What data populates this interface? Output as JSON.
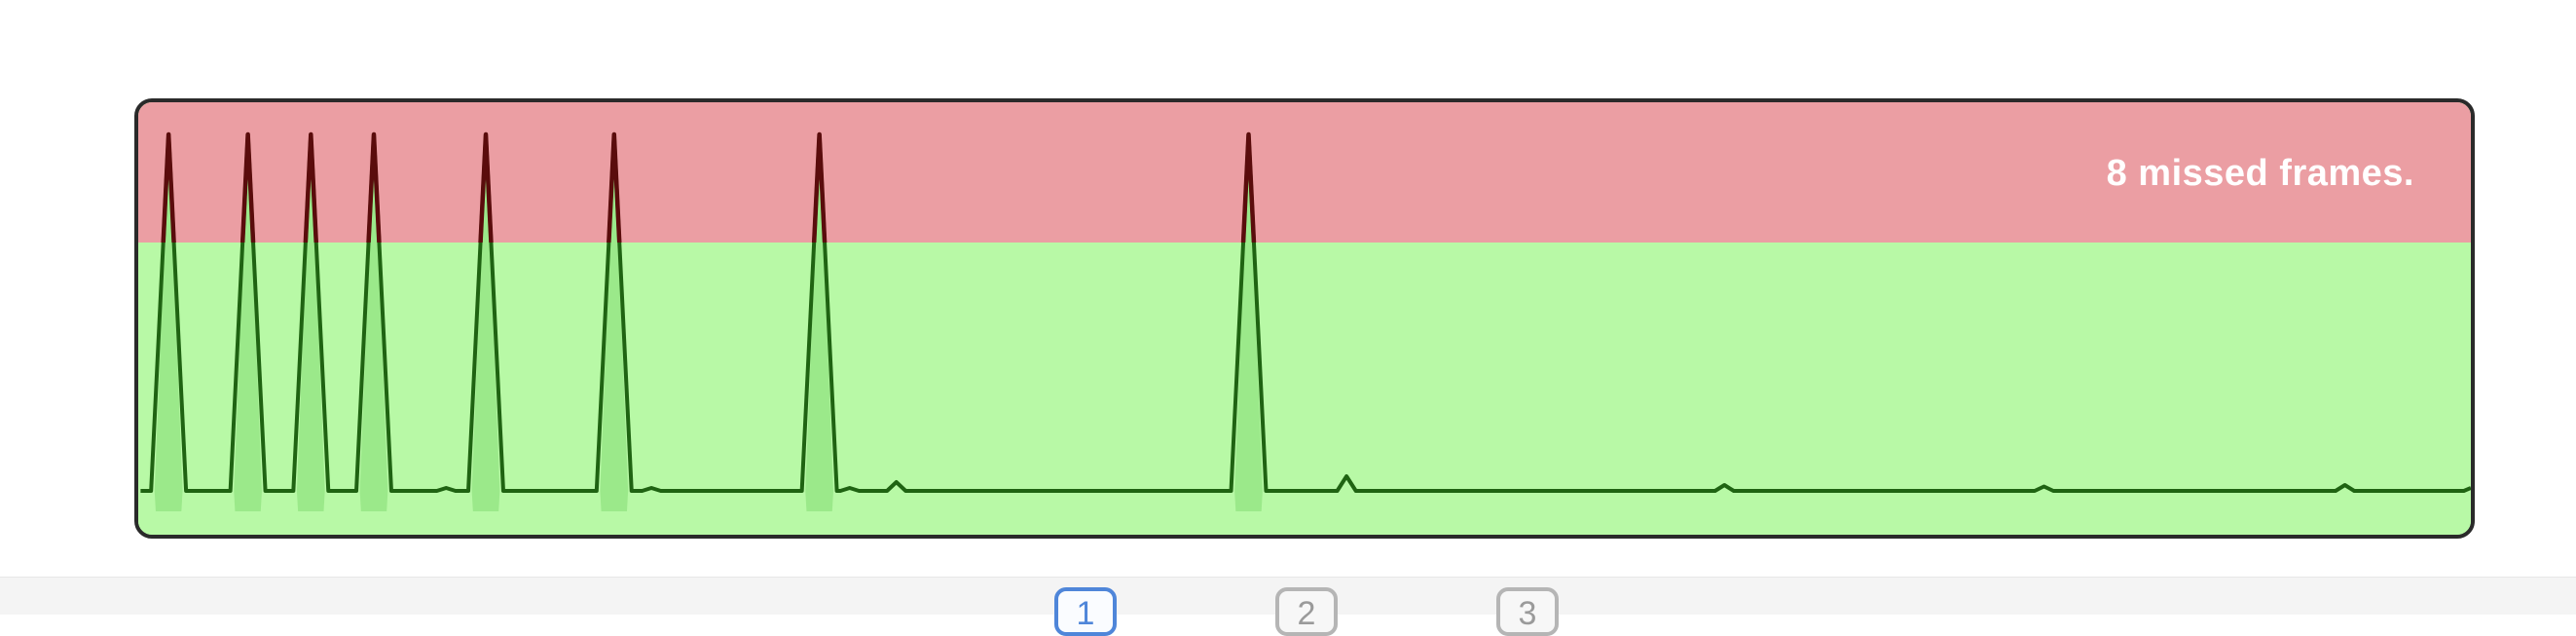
{
  "status_text": "8 missed frames.",
  "colors": {
    "missed_zone": "#eb9ea3",
    "ok_zone": "#b8f9a6",
    "line": "#1f6312",
    "peak_line": "#5a0c0c",
    "fill": "#9be98a",
    "active_page": "#4f86d9"
  },
  "pager": {
    "pages": [
      {
        "label": "1",
        "active": true
      },
      {
        "label": "2",
        "active": false
      },
      {
        "label": "3",
        "active": false
      }
    ]
  },
  "chart_data": {
    "type": "line",
    "title": "",
    "threshold": 1.0,
    "ylim": [
      0,
      1.5
    ],
    "xlim": [
      0,
      100
    ],
    "baseline": 0.15,
    "spikes": [
      {
        "x": 1.3,
        "y": 1.37
      },
      {
        "x": 4.7,
        "y": 1.37
      },
      {
        "x": 7.4,
        "y": 1.37
      },
      {
        "x": 10.1,
        "y": 1.37
      },
      {
        "x": 14.9,
        "y": 1.37
      },
      {
        "x": 20.4,
        "y": 1.37
      },
      {
        "x": 29.2,
        "y": 1.37
      },
      {
        "x": 47.6,
        "y": 1.37
      }
    ],
    "bumps": [
      {
        "x": 13.2,
        "y": 0.16
      },
      {
        "x": 22.0,
        "y": 0.16
      },
      {
        "x": 30.5,
        "y": 0.16
      },
      {
        "x": 32.5,
        "y": 0.18
      },
      {
        "x": 51.8,
        "y": 0.2
      },
      {
        "x": 68.0,
        "y": 0.17
      },
      {
        "x": 81.7,
        "y": 0.165
      },
      {
        "x": 94.6,
        "y": 0.17
      }
    ],
    "missed_frames": 8
  }
}
